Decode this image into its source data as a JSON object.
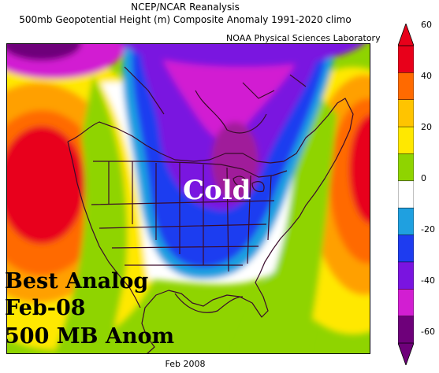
{
  "header": {
    "line1": "NCEP/NCAR Reanalysis",
    "line2": "500mb Geopotential Height (m) Composite Anomaly 1991-2020 climo",
    "credit": "NOAA Physical Sciences Laboratory"
  },
  "map": {
    "center_label": "Cold",
    "overlay_lines": [
      "Best Analog",
      "Feb-08",
      "500 MB Anom"
    ],
    "footer": "Feb 2008"
  },
  "colorbar": {
    "ticks": [
      "60",
      "40",
      "20",
      "0",
      "-20",
      "-40",
      "-60"
    ],
    "colors": [
      "#e8001a",
      "#ff6a00",
      "#ffc400",
      "#ffe800",
      "#8fd400",
      "#ffffff",
      "#1fa0e0",
      "#1e3cf0",
      "#7a14e0",
      "#d21ed2",
      "#6e007a"
    ]
  }
}
